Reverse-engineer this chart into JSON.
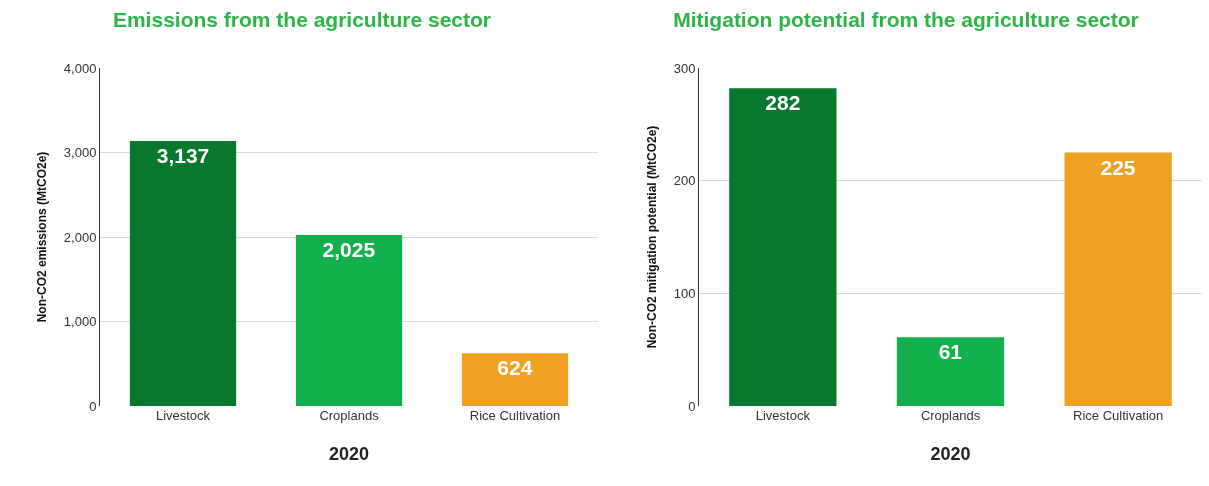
{
  "chart_data": [
    {
      "type": "bar",
      "title": "Emissions from the agriculture sector",
      "xlabel": "2020",
      "ylabel": "Non-CO2 emissions (MtCO2e)",
      "categories": [
        "Livestock",
        "Croplands",
        "Rice Cultivation"
      ],
      "values": [
        3137,
        2025,
        624
      ],
      "colors": [
        "#08782f",
        "#12b04c",
        "#f0a023"
      ],
      "ylim": [
        0,
        4000
      ],
      "yticks": [
        0,
        {
          "value": 1000,
          "label": "1,000"
        },
        {
          "value": 2000,
          "label": "2,000"
        },
        {
          "value": 3000,
          "label": "3,000"
        },
        {
          "value": 4000,
          "label": "4,000"
        }
      ],
      "grid": "y",
      "value_labels": [
        "3,137",
        "2,025",
        "624"
      ]
    },
    {
      "type": "bar",
      "title": "Mitigation potential from the agriculture sector",
      "xlabel": "2020",
      "ylabel": "Non-CO2 mitigation potential (MtCO2e)",
      "categories": [
        "Livestock",
        "Croplands",
        "Rice Cultivation"
      ],
      "values": [
        282,
        61,
        225
      ],
      "colors": [
        "#08782f",
        "#12b04c",
        "#f0a023"
      ],
      "ylim": [
        0,
        300
      ],
      "yticks": [
        0,
        100,
        200,
        300
      ],
      "grid": "y",
      "data_labels": true
    }
  ]
}
